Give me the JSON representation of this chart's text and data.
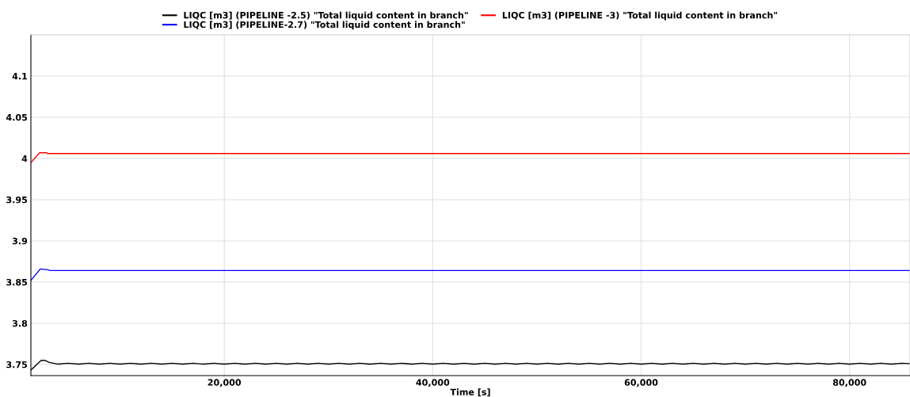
{
  "chart_data": {
    "type": "line",
    "xlabel": "Time [s]",
    "xlim": [
      1440,
      85800
    ],
    "ylim": [
      3.7365,
      4.15
    ],
    "xticks": [
      {
        "value": 20000,
        "label": "20,000"
      },
      {
        "value": 40000,
        "label": "40,000"
      },
      {
        "value": 60000,
        "label": "60,000"
      },
      {
        "value": 80000,
        "label": "80,000"
      }
    ],
    "yticks": [
      3.75,
      3.8,
      3.85,
      3.9,
      3.95,
      4,
      4.05,
      4.1
    ],
    "grid": true,
    "legend": "top",
    "line_style": "solid",
    "marker": "none",
    "series": [
      {
        "name": "LIQC [m3] (PIPELINE -2.5) \"Total liquid content in branch\"",
        "color": "#000000",
        "x": [
          1440,
          2000,
          2430,
          2800,
          3200,
          3600,
          4000,
          5000,
          6000,
          7000,
          8000,
          9000,
          10000,
          11000,
          12000,
          13000,
          14000,
          15000,
          16000,
          17000,
          18000,
          19000,
          20000,
          21000,
          22000,
          23000,
          24000,
          25000,
          26000,
          27000,
          28000,
          29000,
          30000,
          31000,
          32000,
          33000,
          34000,
          35000,
          36000,
          37000,
          38000,
          39000,
          40000,
          41000,
          42000,
          43000,
          44000,
          45000,
          46000,
          47000,
          48000,
          49000,
          50000,
          51000,
          52000,
          53000,
          54000,
          55000,
          56000,
          57000,
          58000,
          59000,
          60000,
          61000,
          62000,
          63000,
          64000,
          65000,
          66000,
          67000,
          68000,
          69000,
          70000,
          71000,
          72000,
          73000,
          74000,
          75000,
          76000,
          77000,
          78000,
          79000,
          80000,
          81000,
          82000,
          83000,
          84000,
          85000,
          85800
        ],
        "values": [
          3.7433,
          3.75,
          3.755,
          3.755,
          3.7525,
          3.7515,
          3.7505,
          3.7515,
          3.7505,
          3.7515,
          3.7505,
          3.7515,
          3.7505,
          3.7515,
          3.7505,
          3.7515,
          3.7505,
          3.7515,
          3.7505,
          3.7515,
          3.7505,
          3.7515,
          3.7505,
          3.7515,
          3.7505,
          3.7515,
          3.7505,
          3.7515,
          3.7505,
          3.7515,
          3.7505,
          3.7515,
          3.7505,
          3.7515,
          3.7505,
          3.7515,
          3.7505,
          3.7515,
          3.7505,
          3.7515,
          3.7505,
          3.7515,
          3.7505,
          3.7515,
          3.7505,
          3.7515,
          3.7505,
          3.7515,
          3.7505,
          3.7515,
          3.7505,
          3.7515,
          3.7505,
          3.7515,
          3.7505,
          3.7515,
          3.7505,
          3.7515,
          3.7505,
          3.7515,
          3.7505,
          3.7515,
          3.7505,
          3.7515,
          3.7505,
          3.7515,
          3.7505,
          3.7515,
          3.7505,
          3.7515,
          3.7505,
          3.7515,
          3.7505,
          3.7515,
          3.7505,
          3.7515,
          3.7505,
          3.7515,
          3.7505,
          3.7515,
          3.7505,
          3.7515,
          3.7505,
          3.7515,
          3.7505,
          3.7515,
          3.7505,
          3.7515,
          3.751
        ]
      },
      {
        "name": "LIQC [m3] (PIPELINE-2.7) \"Total liquid content in branch\"",
        "color": "#0000ff",
        "x": [
          1440,
          2350,
          3000,
          3300,
          85800
        ],
        "values": [
          3.852,
          3.866,
          3.865,
          3.864,
          3.864
        ]
      },
      {
        "name": "LIQC [m3] (PIPELINE -3) \"Total liquid content in branch\"",
        "color": "#ff0000",
        "x": [
          1440,
          2280,
          2960,
          3050,
          85800
        ],
        "values": [
          3.995,
          4.007,
          4.007,
          4.006,
          4.006
        ]
      }
    ]
  }
}
